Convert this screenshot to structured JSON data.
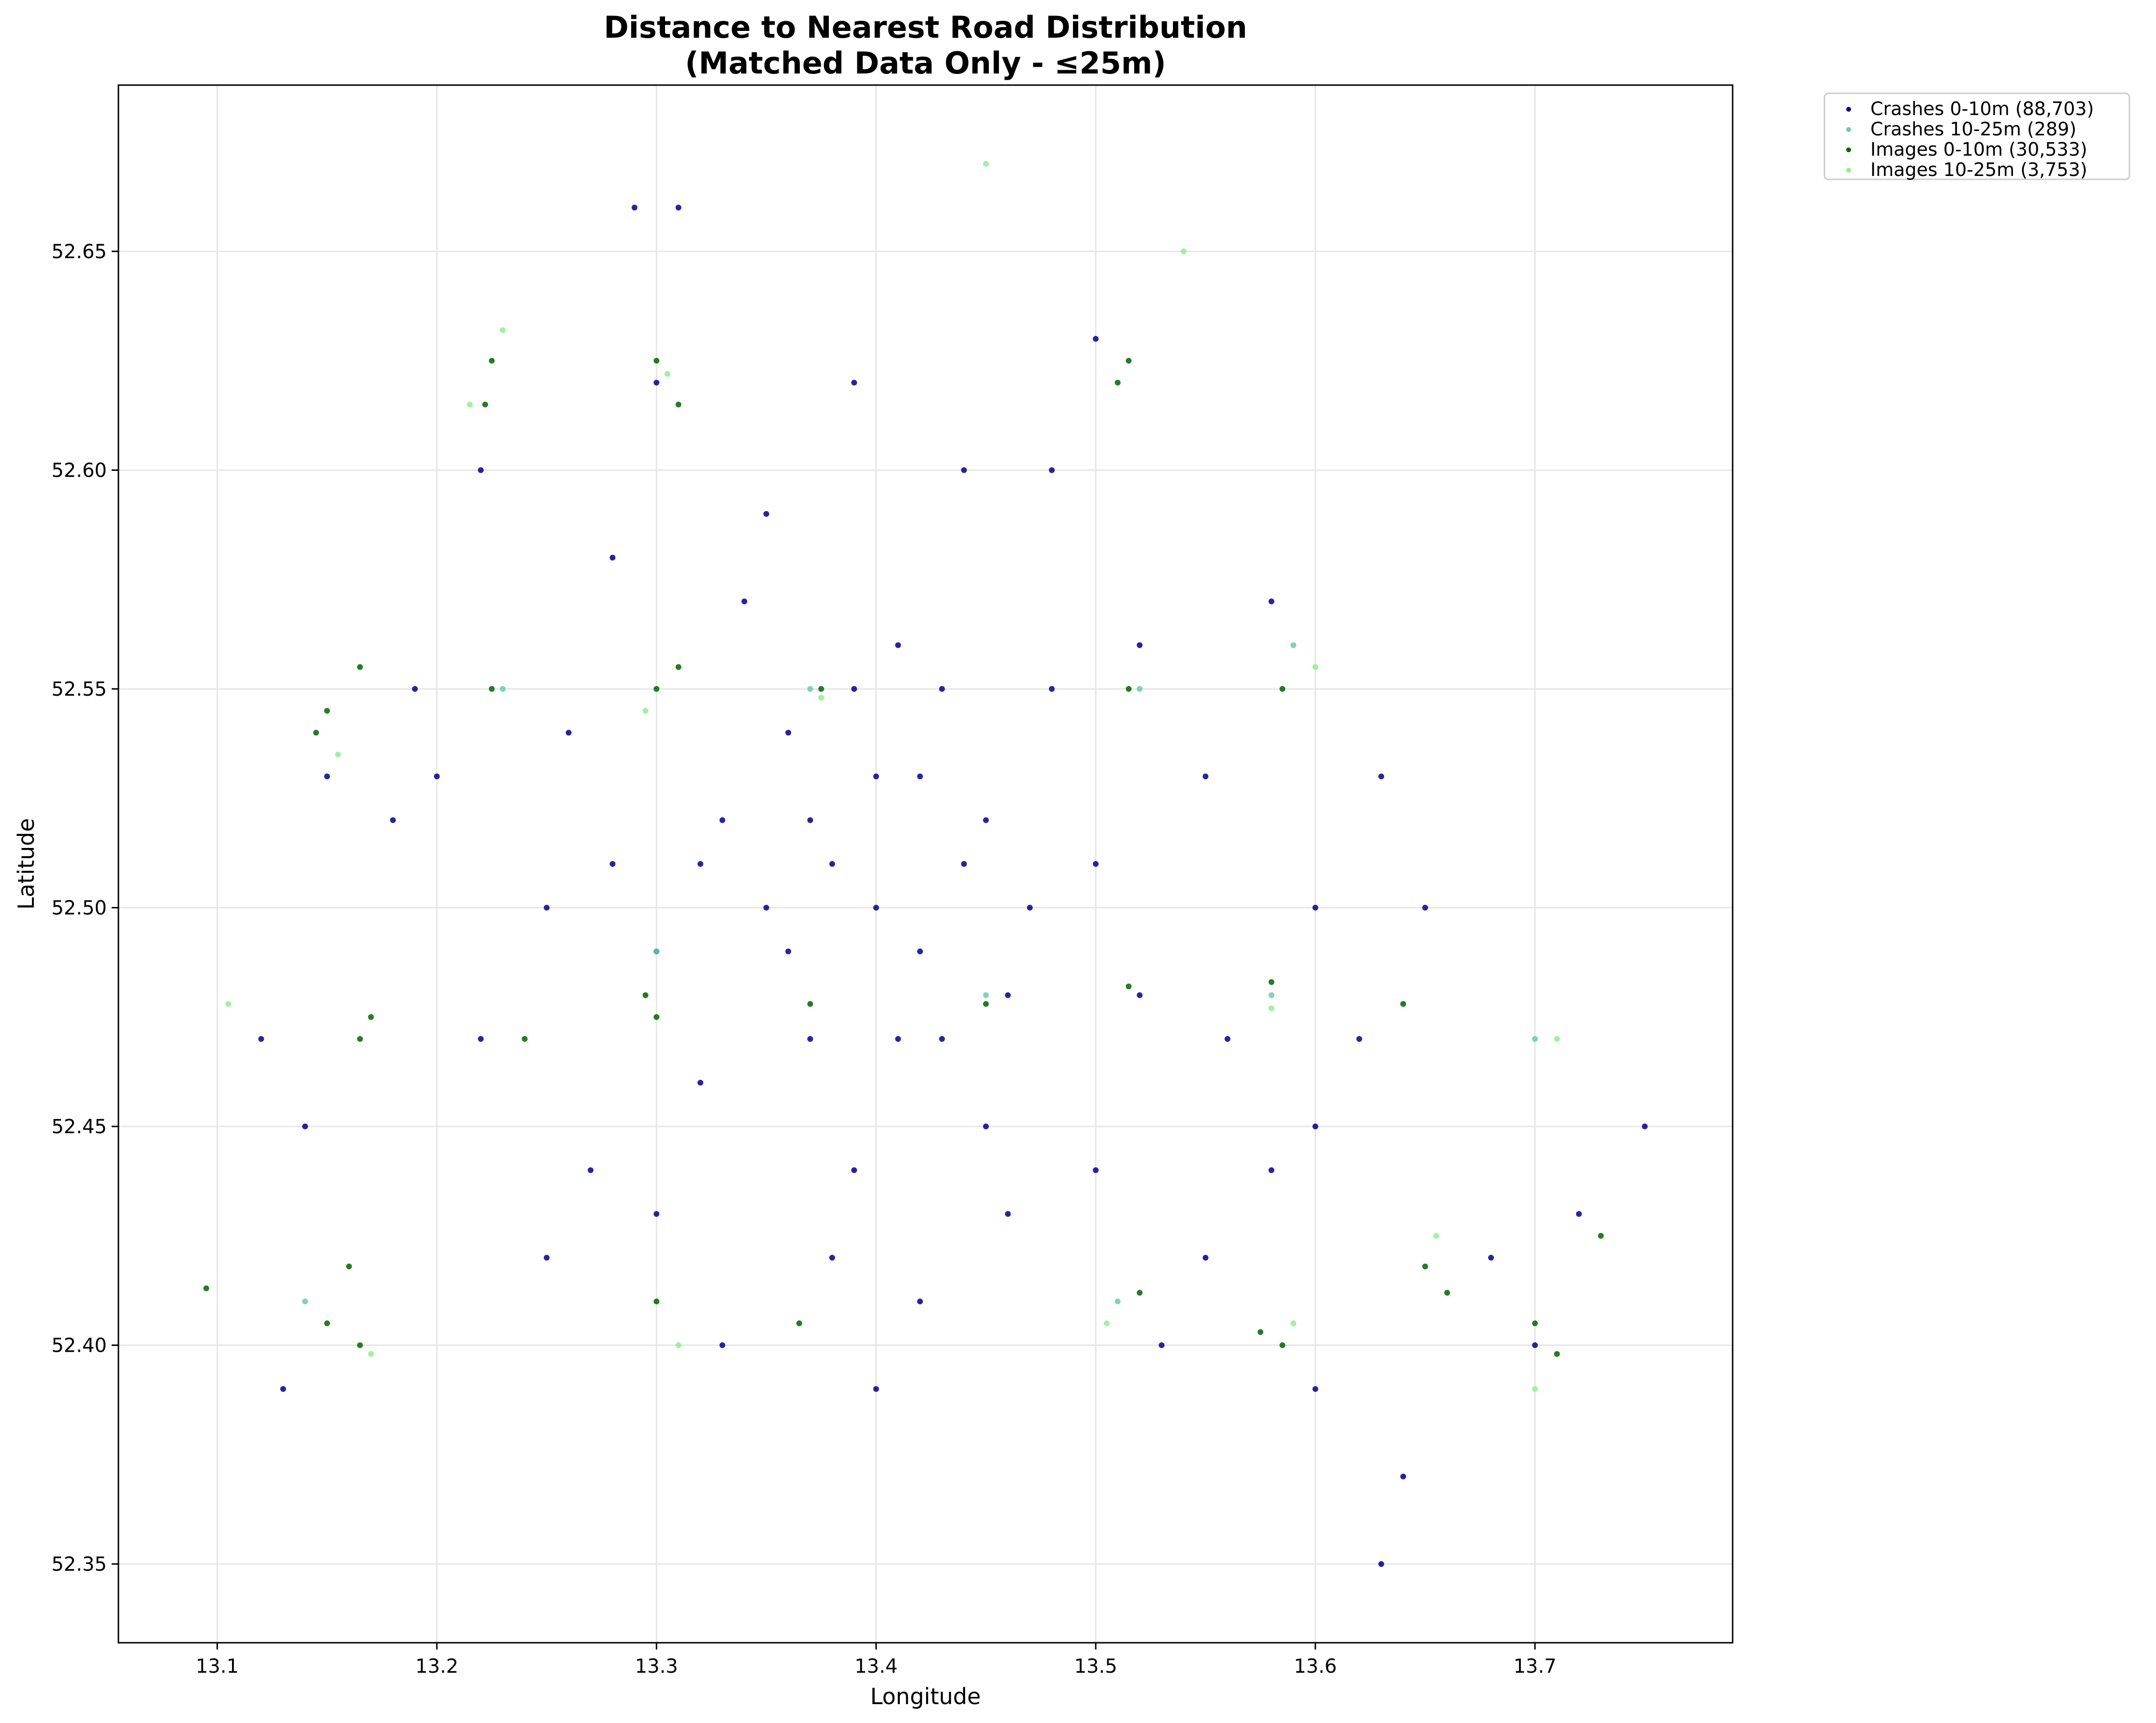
{
  "chart_data": {
    "type": "scatter",
    "title": "Distance to Nearest Road Distribution",
    "subtitle": "(Matched Data Only - ≤25m)",
    "xlabel": "Longitude",
    "ylabel": "Latitude",
    "xlim": [
      13.055,
      13.79
    ],
    "ylim": [
      52.332,
      52.688
    ],
    "xticks": [
      {
        "value": 13.1,
        "label": "13.1"
      },
      {
        "value": 13.2,
        "label": "13.2"
      },
      {
        "value": 13.3,
        "label": "13.3"
      },
      {
        "value": 13.4,
        "label": "13.4"
      },
      {
        "value": 13.5,
        "label": "13.5"
      },
      {
        "value": 13.6,
        "label": "13.6"
      },
      {
        "value": 13.7,
        "label": "13.7"
      }
    ],
    "yticks": [
      {
        "value": 52.35,
        "label": "52.35"
      },
      {
        "value": 52.4,
        "label": "52.40"
      },
      {
        "value": 52.45,
        "label": "52.45"
      },
      {
        "value": 52.5,
        "label": "52.50"
      },
      {
        "value": 52.55,
        "label": "52.55"
      },
      {
        "value": 52.6,
        "label": "52.60"
      },
      {
        "value": 52.65,
        "label": "52.65"
      }
    ],
    "grid": true,
    "legend_position": "outside-top-right",
    "series": [
      {
        "name": "Crashes 0-10m (88,703)",
        "color": "#00008b",
        "points": [
          [
            13.4,
            52.5
          ],
          [
            13.38,
            52.51
          ],
          [
            13.42,
            52.49
          ],
          [
            13.35,
            52.5
          ],
          [
            13.45,
            52.52
          ],
          [
            13.33,
            52.52
          ],
          [
            13.4,
            52.53
          ],
          [
            13.37,
            52.47
          ],
          [
            13.43,
            52.47
          ],
          [
            13.3,
            52.49
          ],
          [
            13.47,
            52.5
          ],
          [
            13.36,
            52.54
          ],
          [
            13.41,
            52.56
          ],
          [
            13.32,
            52.46
          ],
          [
            13.45,
            52.45
          ],
          [
            13.28,
            52.51
          ],
          [
            13.5,
            52.51
          ],
          [
            13.39,
            52.44
          ],
          [
            13.34,
            52.57
          ],
          [
            13.43,
            52.55
          ],
          [
            13.25,
            52.5
          ],
          [
            13.52,
            52.48
          ],
          [
            13.3,
            52.43
          ],
          [
            13.46,
            52.43
          ],
          [
            13.38,
            52.42
          ],
          [
            13.42,
            52.41
          ],
          [
            13.2,
            52.53
          ],
          [
            13.55,
            52.53
          ],
          [
            13.27,
            52.44
          ],
          [
            13.5,
            52.44
          ],
          [
            13.35,
            52.59
          ],
          [
            13.44,
            52.6
          ],
          [
            13.3,
            52.62
          ],
          [
            13.39,
            52.62
          ],
          [
            13.19,
            52.55
          ],
          [
            13.6,
            52.5
          ],
          [
            13.6,
            52.45
          ],
          [
            13.58,
            52.44
          ],
          [
            13.15,
            52.53
          ],
          [
            13.22,
            52.47
          ],
          [
            13.25,
            52.42
          ],
          [
            13.55,
            52.42
          ],
          [
            13.65,
            52.5
          ],
          [
            13.63,
            52.53
          ],
          [
            13.5,
            52.63
          ],
          [
            13.48,
            52.6
          ],
          [
            13.22,
            52.6
          ],
          [
            13.28,
            52.58
          ],
          [
            13.33,
            52.4
          ],
          [
            13.4,
            52.39
          ],
          [
            13.12,
            52.47
          ],
          [
            13.14,
            52.45
          ],
          [
            13.58,
            52.57
          ],
          [
            13.62,
            52.47
          ],
          [
            13.72,
            52.43
          ],
          [
            13.75,
            52.45
          ],
          [
            13.64,
            52.37
          ],
          [
            13.63,
            52.35
          ],
          [
            13.29,
            52.66
          ],
          [
            13.31,
            52.66
          ],
          [
            13.48,
            52.55
          ],
          [
            13.52,
            52.56
          ],
          [
            13.26,
            52.54
          ],
          [
            13.18,
            52.52
          ],
          [
            13.56,
            52.47
          ],
          [
            13.53,
            52.4
          ],
          [
            13.7,
            52.4
          ],
          [
            13.68,
            52.42
          ],
          [
            13.13,
            52.39
          ],
          [
            13.6,
            52.39
          ],
          [
            13.41,
            52.47
          ],
          [
            13.37,
            52.52
          ],
          [
            13.44,
            52.51
          ],
          [
            13.36,
            52.49
          ],
          [
            13.32,
            52.51
          ],
          [
            13.46,
            52.48
          ],
          [
            13.39,
            52.55
          ],
          [
            13.42,
            52.53
          ]
        ]
      },
      {
        "name": "Crashes 10-25m (289)",
        "color": "#66cdaa",
        "points": [
          [
            13.3,
            52.49
          ],
          [
            13.45,
            52.48
          ],
          [
            13.37,
            52.55
          ],
          [
            13.52,
            52.55
          ],
          [
            13.58,
            52.48
          ],
          [
            13.23,
            52.55
          ],
          [
            13.14,
            52.41
          ],
          [
            13.51,
            52.41
          ],
          [
            13.7,
            52.47
          ],
          [
            13.59,
            52.56
          ]
        ]
      },
      {
        "name": "Images 0-10m (30,533)",
        "color": "#006400",
        "points": [
          [
            13.225,
            52.625
          ],
          [
            13.222,
            52.615
          ],
          [
            13.3,
            52.625
          ],
          [
            13.31,
            52.615
          ],
          [
            13.515,
            52.625
          ],
          [
            13.51,
            52.62
          ],
          [
            13.15,
            52.545
          ],
          [
            13.145,
            52.54
          ],
          [
            13.225,
            52.55
          ],
          [
            13.3,
            52.55
          ],
          [
            13.31,
            52.555
          ],
          [
            13.375,
            52.55
          ],
          [
            13.515,
            52.55
          ],
          [
            13.585,
            52.55
          ],
          [
            13.165,
            52.555
          ],
          [
            13.3,
            52.475
          ],
          [
            13.295,
            52.48
          ],
          [
            13.37,
            52.478
          ],
          [
            13.45,
            52.478
          ],
          [
            13.515,
            52.482
          ],
          [
            13.58,
            52.483
          ],
          [
            13.165,
            52.47
          ],
          [
            13.17,
            52.475
          ],
          [
            13.24,
            52.47
          ],
          [
            13.15,
            52.405
          ],
          [
            13.16,
            52.418
          ],
          [
            13.165,
            52.4
          ],
          [
            13.3,
            52.41
          ],
          [
            13.365,
            52.405
          ],
          [
            13.52,
            52.412
          ],
          [
            13.575,
            52.403
          ],
          [
            13.585,
            52.4
          ],
          [
            13.65,
            52.418
          ],
          [
            13.66,
            52.412
          ],
          [
            13.7,
            52.405
          ],
          [
            13.71,
            52.398
          ],
          [
            13.095,
            52.413
          ],
          [
            13.64,
            52.478
          ],
          [
            13.73,
            52.425
          ]
        ]
      },
      {
        "name": "Images 10-25m (3,753)",
        "color": "#90ee90",
        "points": [
          [
            13.215,
            52.615
          ],
          [
            13.23,
            52.632
          ],
          [
            13.305,
            52.622
          ],
          [
            13.155,
            52.535
          ],
          [
            13.295,
            52.545
          ],
          [
            13.375,
            52.548
          ],
          [
            13.59,
            52.405
          ],
          [
            13.505,
            52.405
          ],
          [
            13.6,
            52.555
          ],
          [
            13.7,
            52.39
          ],
          [
            13.655,
            52.425
          ],
          [
            13.31,
            52.4
          ],
          [
            13.17,
            52.398
          ],
          [
            13.45,
            52.67
          ],
          [
            13.54,
            52.65
          ],
          [
            13.71,
            52.47
          ],
          [
            13.105,
            52.478
          ],
          [
            13.58,
            52.477
          ]
        ]
      }
    ]
  }
}
